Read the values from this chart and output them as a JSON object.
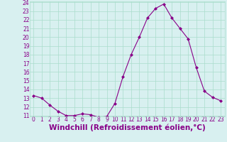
{
  "x": [
    0,
    1,
    2,
    3,
    4,
    5,
    6,
    7,
    8,
    9,
    10,
    11,
    12,
    13,
    14,
    15,
    16,
    17,
    18,
    19,
    20,
    21,
    22,
    23
  ],
  "y": [
    13.3,
    13.0,
    12.2,
    11.5,
    11.0,
    11.0,
    11.2,
    11.1,
    10.8,
    10.9,
    12.4,
    15.5,
    18.0,
    20.0,
    22.2,
    23.3,
    23.8,
    22.2,
    21.0,
    19.8,
    16.5,
    13.8,
    13.1,
    12.7
  ],
  "line_color": "#880088",
  "marker": "D",
  "marker_size": 2,
  "bg_color": "#d8f0f0",
  "grid_color": "#aaddcc",
  "xlabel": "Windchill (Refroidissement éolien,°C)",
  "xlabel_color": "#880088",
  "ylim": [
    11,
    24
  ],
  "xlim": [
    -0.5,
    23.5
  ],
  "yticks": [
    11,
    12,
    13,
    14,
    15,
    16,
    17,
    18,
    19,
    20,
    21,
    22,
    23,
    24
  ],
  "xticks": [
    0,
    1,
    2,
    3,
    4,
    5,
    6,
    7,
    8,
    9,
    10,
    11,
    12,
    13,
    14,
    15,
    16,
    17,
    18,
    19,
    20,
    21,
    22,
    23
  ],
  "tick_color": "#880088",
  "tick_fontsize": 5.5,
  "xlabel_fontsize": 7.5,
  "xlabel_fontweight": "bold"
}
